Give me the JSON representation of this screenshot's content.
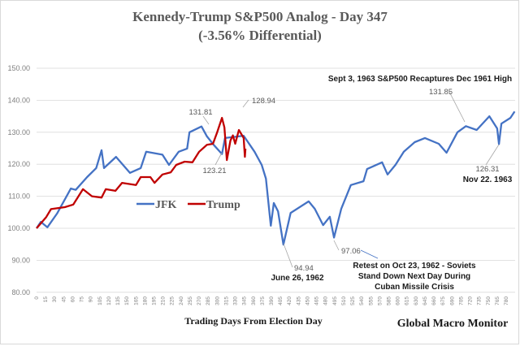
{
  "chart_data": {
    "type": "line",
    "title": "Kennedy-Trump  S&P500 Analog  - Day 347",
    "subtitle": "(-3.56% Differential)",
    "xlabel": "Trading  Days From  Election Day",
    "ylabel": "",
    "xlim": [
      0,
      795
    ],
    "ylim": [
      80,
      150
    ],
    "yticks": [
      "80.00",
      "90.00",
      "100.00",
      "110.00",
      "120.00",
      "130.00",
      "140.00",
      "150.00"
    ],
    "xticks": [
      "0",
      "15",
      "30",
      "45",
      "60",
      "75",
      "90",
      "105",
      "120",
      "135",
      "150",
      "165",
      "180",
      "195",
      "210",
      "225",
      "240",
      "255",
      "270",
      "285",
      "300",
      "315",
      "330",
      "345",
      "360",
      "375",
      "390",
      "405",
      "420",
      "435",
      "450",
      "465",
      "480",
      "495",
      "510",
      "525",
      "540",
      "555",
      "570",
      "585",
      "600",
      "615",
      "630",
      "645",
      "660",
      "675",
      "690",
      "705",
      "720",
      "735",
      "750",
      "765",
      "780"
    ],
    "grid": true,
    "legend_position": "center-left",
    "series": [
      {
        "name": "JFK",
        "color": "#4472c4",
        "points": [
          [
            0,
            100
          ],
          [
            7,
            102
          ],
          [
            18,
            100.3
          ],
          [
            34,
            104.6
          ],
          [
            57,
            112.4
          ],
          [
            65,
            112
          ],
          [
            84,
            116
          ],
          [
            99,
            118.8
          ],
          [
            108,
            124.4
          ],
          [
            112,
            118.8
          ],
          [
            132,
            122.3
          ],
          [
            155,
            117.3
          ],
          [
            173,
            118.8
          ],
          [
            182,
            123.9
          ],
          [
            209,
            123
          ],
          [
            220,
            119.8
          ],
          [
            236,
            123.9
          ],
          [
            250,
            124.9
          ],
          [
            254,
            130
          ],
          [
            274,
            131.8
          ],
          [
            283,
            128.7
          ],
          [
            294,
            126.1
          ],
          [
            308,
            123.2
          ],
          [
            313,
            128.2
          ],
          [
            344,
            128.9
          ],
          [
            362,
            123.9
          ],
          [
            374,
            119.8
          ],
          [
            381,
            115.5
          ],
          [
            389,
            100.8
          ],
          [
            394,
            107.9
          ],
          [
            401,
            105.3
          ],
          [
            410,
            94.9
          ],
          [
            422,
            104.8
          ],
          [
            452,
            108.4
          ],
          [
            462,
            106.1
          ],
          [
            476,
            101
          ],
          [
            487,
            103.6
          ],
          [
            494,
            97.1
          ],
          [
            506,
            106.1
          ],
          [
            522,
            113.5
          ],
          [
            543,
            114.7
          ],
          [
            549,
            118.5
          ],
          [
            574,
            120.6
          ],
          [
            583,
            116.8
          ],
          [
            596,
            119.8
          ],
          [
            610,
            123.9
          ],
          [
            628,
            126.9
          ],
          [
            645,
            128.2
          ],
          [
            668,
            126.4
          ],
          [
            681,
            123.6
          ],
          [
            699,
            130
          ],
          [
            713,
            131.9
          ],
          [
            731,
            130.7
          ],
          [
            752,
            135
          ],
          [
            765,
            131.2
          ],
          [
            768,
            126.3
          ],
          [
            772,
            132.7
          ],
          [
            787,
            134.5
          ],
          [
            794,
            136.5
          ]
        ]
      },
      {
        "name": "Trump",
        "color": "#c00000",
        "points": [
          [
            0,
            100
          ],
          [
            16,
            103.5
          ],
          [
            24,
            106
          ],
          [
            47,
            106.6
          ],
          [
            61,
            107.4
          ],
          [
            77,
            112.2
          ],
          [
            92,
            110
          ],
          [
            108,
            109.6
          ],
          [
            115,
            112.2
          ],
          [
            131,
            111.7
          ],
          [
            142,
            114.2
          ],
          [
            165,
            113.5
          ],
          [
            173,
            116
          ],
          [
            189,
            116
          ],
          [
            196,
            114.2
          ],
          [
            209,
            116.8
          ],
          [
            223,
            117.5
          ],
          [
            232,
            119.8
          ],
          [
            246,
            120.8
          ],
          [
            259,
            120.6
          ],
          [
            270,
            123.9
          ],
          [
            283,
            126.1
          ],
          [
            293,
            126.4
          ],
          [
            300,
            130
          ],
          [
            308,
            134.5
          ],
          [
            312,
            131.5
          ],
          [
            316,
            121.3
          ],
          [
            322,
            127.4
          ],
          [
            326,
            129
          ],
          [
            330,
            126.4
          ],
          [
            336,
            130.7
          ],
          [
            344,
            128.2
          ],
          [
            346,
            122.3
          ],
          [
            347,
            124.9
          ]
        ]
      }
    ],
    "data_labels": [
      "131.81",
      "123.21",
      "128.94",
      "94.94",
      "97.06",
      "131.85",
      "126.31"
    ],
    "annotations": {
      "sept": "Sept 3, 1963  S&P500 Recaptures Dec 1961  High",
      "nov": "Nov 22. 1963",
      "june": "June 26, 1962",
      "retest": [
        "Retest on Oct 23, 1962 - Soviets",
        "Stand Down Next Day During",
        "Cuban Missile Crisis"
      ]
    },
    "source": "Global Macro Monitor"
  }
}
